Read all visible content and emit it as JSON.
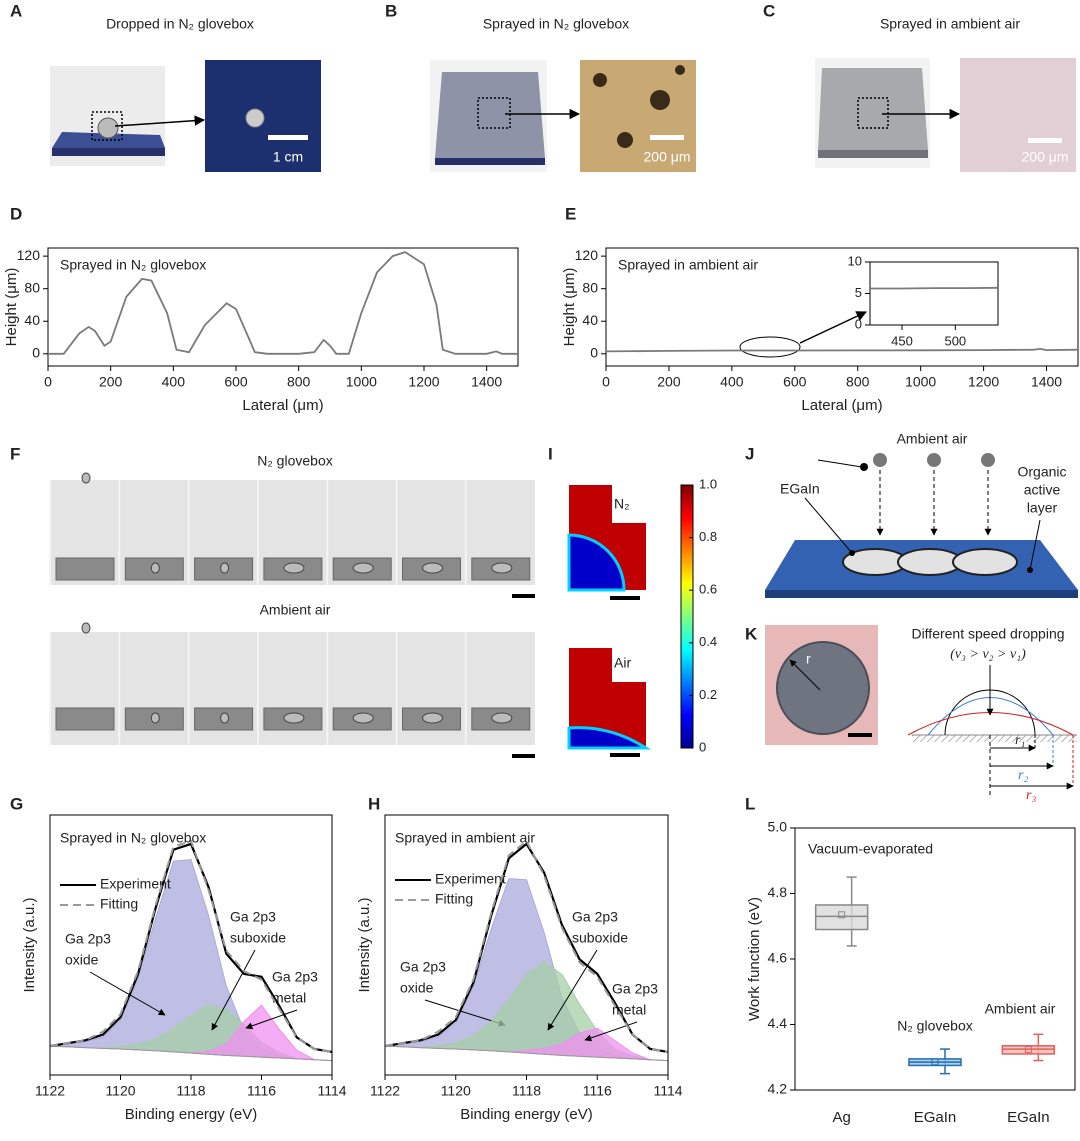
{
  "panels": {
    "labels": [
      "A",
      "B",
      "C",
      "D",
      "E",
      "F",
      "G",
      "H",
      "I",
      "J",
      "K",
      "L"
    ],
    "A": {
      "caption": "Dropped in N₂ glovebox",
      "scale": "1 cm"
    },
    "B": {
      "caption": "Sprayed in N₂ glovebox",
      "scale": "200 μm"
    },
    "C": {
      "caption": "Sprayed in ambient air",
      "scale": "200 μm"
    },
    "F": {
      "top": "N₂ glovebox",
      "bottom": "Ambient air"
    },
    "I": {
      "top": "N₂",
      "bottom": "Air",
      "colorbar_lim": [
        0,
        1
      ],
      "colorbar_ticks": [
        0,
        0.2,
        0.4,
        0.6,
        0.8,
        {
          "value": 1,
          "label": "1.0"
        }
      ]
    },
    "J": {
      "air": "Ambient air",
      "egain": "EGaIn",
      "layer": [
        "Organic",
        "active",
        "layer"
      ]
    },
    "K": {
      "title": "Different speed dropping",
      "order": "(v₃ > v₂ > v₁)",
      "r": "r",
      "radii": [
        "r₁",
        "r₂",
        "r₃"
      ]
    }
  },
  "chart_data": [
    {
      "type": "line",
      "title": "Sprayed in N₂ glovebox",
      "xlabel": "Lateral (μm)",
      "ylabel": "Height (μm)",
      "color": "#7a7a7a",
      "x": [
        0,
        50,
        100,
        130,
        150,
        180,
        200,
        250,
        300,
        330,
        380,
        410,
        450,
        500,
        570,
        600,
        640,
        660,
        700,
        800,
        850,
        880,
        900,
        920,
        960,
        1000,
        1050,
        1100,
        1140,
        1200,
        1240,
        1260,
        1300,
        1400,
        1430,
        1450,
        1500
      ],
      "values": [
        0,
        0,
        25,
        33,
        28,
        10,
        15,
        70,
        92,
        90,
        50,
        5,
        2,
        35,
        62,
        55,
        20,
        2,
        0,
        0,
        2,
        17,
        10,
        0,
        0,
        50,
        100,
        120,
        125,
        110,
        60,
        5,
        0,
        0,
        3,
        0,
        0
      ],
      "xlim": [
        0,
        1500
      ],
      "ylim": [
        -15,
        130
      ],
      "xticks": [
        0,
        200,
        400,
        600,
        800,
        1000,
        1200,
        1400
      ],
      "yticks": [
        0,
        40,
        80,
        120
      ]
    },
    {
      "type": "line",
      "title": "Sprayed in ambient air",
      "xlabel": "Lateral (μm)",
      "ylabel": "Height (μm)",
      "color": "#7a7a7a",
      "x": [
        0,
        200,
        400,
        600,
        800,
        1000,
        1200,
        1360,
        1380,
        1400,
        1500
      ],
      "values": [
        3,
        3.5,
        4,
        4,
        4.2,
        4.3,
        4.5,
        5,
        6,
        4.5,
        5
      ],
      "xlim": [
        0,
        1500
      ],
      "ylim": [
        -15,
        130
      ],
      "xticks": [
        0,
        200,
        400,
        600,
        800,
        1000,
        1200,
        1400
      ],
      "yticks": [
        0,
        40,
        80,
        120
      ],
      "inset": {
        "x": [
          420,
          450,
          480,
          510,
          540
        ],
        "values": [
          5.8,
          5.8,
          5.85,
          5.85,
          5.9
        ],
        "xlim": [
          420,
          540
        ],
        "ylim": [
          0,
          10
        ],
        "xticks": [
          450,
          500
        ],
        "yticks": [
          0,
          5,
          10
        ]
      }
    },
    {
      "type": "xps",
      "title": "Sprayed in N₂ glovebox",
      "xlabel": "Binding energy (eV)",
      "ylabel": "Intensity (a.u.)",
      "xlim": [
        1122,
        1114
      ],
      "ylim": [
        0,
        90
      ],
      "xticks": [
        1122,
        1120,
        1118,
        1116,
        1114
      ],
      "x": [
        1122,
        1121.5,
        1121,
        1120.5,
        1120,
        1119.5,
        1119,
        1118.5,
        1118,
        1117.5,
        1117,
        1116.5,
        1116,
        1115.5,
        1115,
        1114.5,
        1114
      ],
      "series": [
        {
          "name": "Experiment",
          "color": "#000000",
          "style": "solid",
          "values": [
            10,
            11,
            12,
            14,
            20,
            35,
            58,
            78,
            80,
            65,
            42,
            35,
            34,
            24,
            13,
            9,
            8
          ]
        },
        {
          "name": "Fitting",
          "color": "#999999",
          "style": "dashed",
          "values": [
            10,
            11,
            12,
            15,
            21,
            36,
            59,
            79,
            81,
            64,
            43,
            36,
            33,
            23,
            13,
            9,
            8
          ]
        }
      ],
      "background": [
        10,
        9.8,
        9.5,
        9.2,
        9,
        8.7,
        8.4,
        8,
        7.6,
        7.2,
        6.8,
        6.5,
        6.2,
        5.9,
        5.6,
        5.3,
        5
      ],
      "components": [
        {
          "label": [
            "Ga 2p3",
            "oxide"
          ],
          "color": "#a9a9dc",
          "values": [
            10,
            10.8,
            11.5,
            13.2,
            19,
            33.7,
            54.4,
            74,
            74.6,
            55.2,
            30.8,
            15.5,
            9.2,
            6.9,
            5.6,
            5.3,
            5
          ]
        },
        {
          "label": [
            "Ga 2p3",
            "suboxide"
          ],
          "color": "#a6cfa6",
          "values": [
            10,
            9.8,
            9.5,
            9.2,
            10,
            10.7,
            12.4,
            16,
            20.6,
            24.2,
            22.8,
            17.5,
            11.2,
            7.9,
            5.6,
            5.3,
            5
          ]
        },
        {
          "label": [
            "Ga 2p3",
            "metal"
          ],
          "color": "#f090f0",
          "values": [
            10,
            9.8,
            9.5,
            9.2,
            9,
            8.7,
            8.4,
            8,
            7.6,
            8.2,
            10.8,
            18.5,
            24.2,
            15.9,
            8.6,
            5.3,
            5
          ]
        }
      ]
    },
    {
      "type": "xps",
      "title": "Sprayed in ambient air",
      "xlabel": "Binding energy (eV)",
      "ylabel": "Intensity (a.u.)",
      "xlim": [
        1122,
        1114
      ],
      "ylim": [
        0,
        90
      ],
      "xticks": [
        1122,
        1120,
        1118,
        1116,
        1114
      ],
      "x": [
        1122,
        1121.5,
        1121,
        1120.5,
        1120,
        1119.5,
        1119,
        1118.5,
        1118,
        1117.5,
        1117,
        1116.5,
        1116,
        1115.5,
        1115,
        1114.5,
        1114
      ],
      "series": [
        {
          "name": "Experiment",
          "color": "#000000",
          "style": "solid",
          "values": [
            10,
            11,
            12,
            14,
            19,
            32,
            55,
            75,
            80,
            70,
            52,
            40,
            35,
            25,
            14,
            9,
            8
          ]
        },
        {
          "name": "Fitting",
          "color": "#999999",
          "style": "dashed",
          "values": [
            10,
            11,
            12,
            15,
            20,
            33,
            56,
            76,
            81,
            69,
            51,
            39,
            34,
            24,
            14,
            9,
            8
          ]
        }
      ],
      "background": [
        10,
        9.8,
        9.5,
        9.2,
        9,
        8.7,
        8.4,
        8,
        7.6,
        7.2,
        6.8,
        6.5,
        6.2,
        5.9,
        5.6,
        5.3,
        5
      ],
      "components": [
        {
          "label": [
            "Ga 2p3",
            "oxide"
          ],
          "color": "#a9a9dc",
          "values": [
            10,
            10.8,
            11.5,
            13.2,
            18,
            30.7,
            50.4,
            68,
            67.6,
            49.2,
            26.8,
            14.5,
            9.2,
            6.9,
            5.6,
            5.3,
            5
          ]
        },
        {
          "label": [
            "Ga 2p3",
            "suboxide"
          ],
          "color": "#a6cfa6",
          "values": [
            10,
            9.8,
            9.5,
            10.2,
            11,
            13.7,
            18.4,
            26,
            34.6,
            39.2,
            34.8,
            24.5,
            15.2,
            8.9,
            6.6,
            5.3,
            5
          ]
        },
        {
          "label": [
            "Ga 2p3",
            "metal"
          ],
          "color": "#f090f0",
          "values": [
            10,
            9.8,
            9.5,
            9.2,
            9,
            8.7,
            8.4,
            8,
            8.6,
            9.2,
            10.8,
            14.5,
            16.2,
            11.9,
            7.6,
            5.3,
            5
          ]
        }
      ]
    },
    {
      "type": "box",
      "ylabel": "Work function (eV)",
      "categories": [
        "Ag",
        "EGaIn",
        "EGaIn"
      ],
      "group_labels": [
        "Vacuum-evaporated",
        "N₂ glovebox",
        "Ambient air"
      ],
      "ylim": [
        4.2,
        5.0
      ],
      "yticks": [
        4.2,
        4.4,
        4.6,
        4.8,
        {
          "value": 5,
          "label": "5.0"
        }
      ],
      "boxes": [
        {
          "color": "#888888",
          "fill": "#d9d9d9",
          "whisker_low": 4.64,
          "q1": 4.69,
          "median": 4.73,
          "q3": 4.765,
          "whisker_high": 4.85,
          "mean": 4.735
        },
        {
          "color": "#1f6fb4",
          "fill": "#9ec3e6",
          "whisker_low": 4.25,
          "q1": 4.275,
          "median": 4.285,
          "q3": 4.295,
          "whisker_high": 4.325,
          "mean": 4.286
        },
        {
          "color": "#e0605a",
          "fill": "#f4b6b2",
          "whisker_low": 4.29,
          "q1": 4.31,
          "median": 4.325,
          "q3": 4.335,
          "whisker_high": 4.37,
          "mean": 4.324
        }
      ]
    }
  ]
}
